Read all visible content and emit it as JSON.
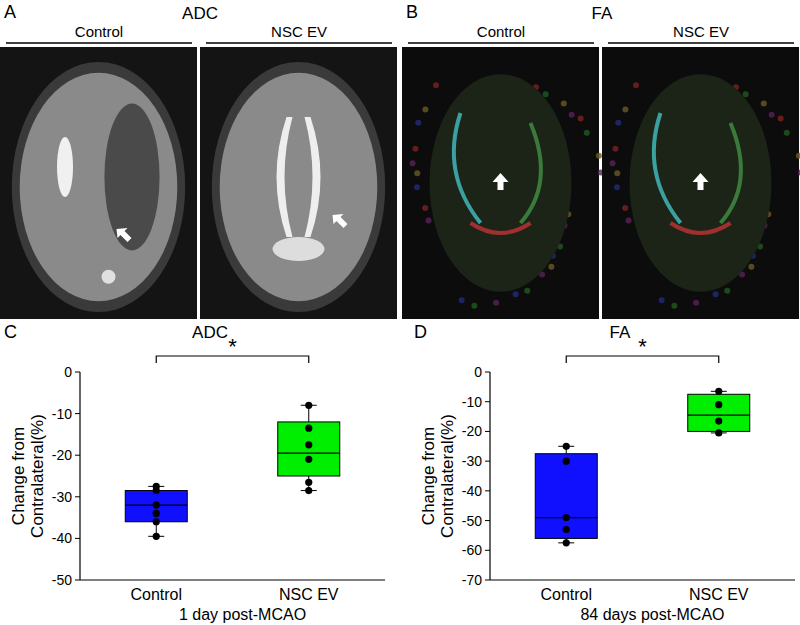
{
  "image_panels": [
    {
      "label": "A",
      "title": "ADC",
      "columns": [
        "Control",
        "NSC EV"
      ]
    },
    {
      "label": "B",
      "title": "FA",
      "columns": [
        "Control",
        "NSC EV"
      ]
    }
  ],
  "chart_data": [
    {
      "type": "box",
      "label": "C",
      "title": "ADC",
      "categories": [
        "Control",
        "NSC EV"
      ],
      "x_label": "1 day post-MCAO",
      "y_label": "Change from Contralateral(%)",
      "colors": [
        "#1010ff",
        "#00ee00"
      ],
      "ylim": [
        -50,
        0
      ],
      "yticks": [
        -50,
        -40,
        -30,
        -20,
        -10,
        0
      ],
      "boxes": [
        {
          "min": -39.5,
          "q1": -36,
          "median": -32,
          "q3": -28.5,
          "max": -27.5,
          "points": [
            -27.5,
            -28.5,
            -32,
            -34,
            -36,
            -39.5
          ]
        },
        {
          "min": -28.5,
          "q1": -25,
          "median": -19.5,
          "q3": -12,
          "max": -8,
          "points": [
            -8,
            -13.5,
            -17.5,
            -21,
            -26.5,
            -28.5
          ]
        }
      ],
      "annotation": "*"
    },
    {
      "type": "box",
      "label": "D",
      "title": "FA",
      "categories": [
        "Control",
        "NSC EV"
      ],
      "x_label": "84 days post-MCAO",
      "y_label": "Change from Contralateral(%)",
      "colors": [
        "#1010ff",
        "#00ee00"
      ],
      "ylim": [
        -70,
        0
      ],
      "yticks": [
        -70,
        -60,
        -50,
        -40,
        -30,
        -20,
        -10,
        0
      ],
      "boxes": [
        {
          "min": -57.5,
          "q1": -56,
          "median": -49,
          "q3": -27.5,
          "max": -25,
          "points": [
            -25,
            -30,
            -49,
            -53,
            -57.5
          ]
        },
        {
          "min": -20.5,
          "q1": -20,
          "median": -14.5,
          "q3": -7.5,
          "max": -6.5,
          "points": [
            -6.5,
            -11,
            -16.5,
            -20.5
          ]
        }
      ],
      "annotation": "*"
    }
  ]
}
